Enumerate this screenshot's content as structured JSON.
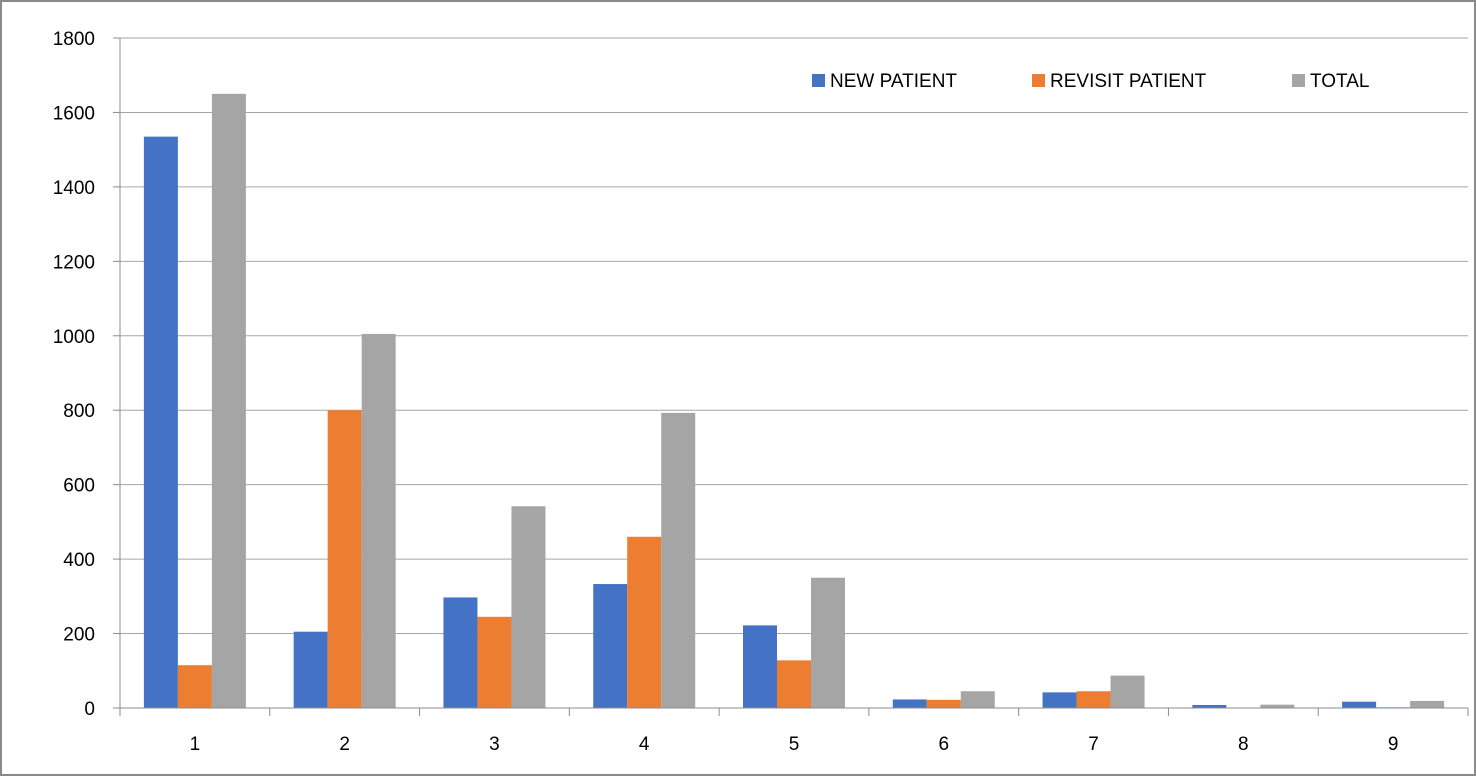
{
  "chart_data": {
    "type": "bar",
    "title": "",
    "xlabel": "",
    "ylabel": "",
    "categories": [
      "1",
      "2",
      "3",
      "4",
      "5",
      "6",
      "7",
      "8",
      "9"
    ],
    "ylim": [
      0,
      1800
    ],
    "yticks": [
      0,
      200,
      400,
      600,
      800,
      1000,
      1200,
      1400,
      1600,
      1800
    ],
    "grid": true,
    "legend": "top-right",
    "series": [
      {
        "name": "NEW PATIENT",
        "color": "#4472C4",
        "values": [
          1535,
          205,
          297,
          333,
          222,
          23,
          42,
          8,
          17
        ]
      },
      {
        "name": "REVISIT PATIENT",
        "color": "#ED7D31",
        "values": [
          115,
          800,
          245,
          460,
          128,
          22,
          45,
          1,
          2
        ]
      },
      {
        "name": "TOTAL",
        "color": "#A5A5A5",
        "values": [
          1650,
          1005,
          542,
          793,
          350,
          45,
          87,
          9,
          19
        ]
      }
    ]
  }
}
